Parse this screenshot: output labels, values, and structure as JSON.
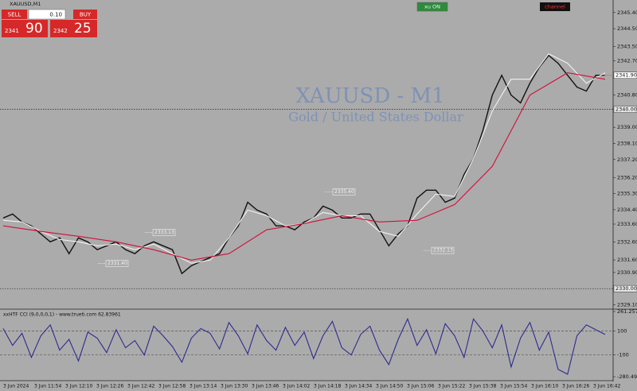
{
  "window": {
    "title": "XAUUSD,M1"
  },
  "trade_panel": {
    "sell": "SELL",
    "buy": "BUY",
    "lot": "0.10",
    "bid": {
      "big": "2341",
      "small": "90"
    },
    "ask": {
      "big": "2342",
      "small": "25"
    }
  },
  "buttons": {
    "xu": "xu ON",
    "channel": "channel"
  },
  "time_labels": [
    "3 Jun 2024",
    "3 Jun 11:54",
    "3 Jun 12:10",
    "3 Jun 12:26",
    "3 Jun 12:42",
    "3 Jun 12:58",
    "3 Jun 13:14",
    "3 Jun 13:30",
    "3 Jun 13:46",
    "3 Jun 14:02",
    "3 Jun 14:18",
    "3 Jun 14:34",
    "3 Jun 14:50",
    "3 Jun 15:06",
    "3 Jun 15:22",
    "3 Jun 15:38",
    "3 Jun 15:54",
    "3 Jun 16:10",
    "3 Jun 16:26",
    "3 Jun 16:42"
  ],
  "chart_data": [
    {
      "type": "line",
      "title": "XAUUSD - M1",
      "subtitle": "Gold / United States Dollar",
      "ylim": [
        2328.9,
        2346.1
      ],
      "yticks": [
        {
          "value": 2345.4,
          "label": "2345.40"
        },
        {
          "value": 2344.5,
          "label": "2344.50"
        },
        {
          "value": 2343.5,
          "label": "2343.50"
        },
        {
          "value": 2342.7,
          "label": "2342.70"
        },
        {
          "value": 2340.8,
          "label": "2340.80"
        },
        {
          "value": 2339.0,
          "label": "2339.00"
        },
        {
          "value": 2338.1,
          "label": "2338.10"
        },
        {
          "value": 2337.2,
          "label": "2337.20"
        },
        {
          "value": 2336.2,
          "label": "2336.20"
        },
        {
          "value": 2335.3,
          "label": "2335.30"
        },
        {
          "value": 2334.4,
          "label": "2334.40"
        },
        {
          "value": 2333.6,
          "label": "2333.60"
        },
        {
          "value": 2332.6,
          "label": "2332.60"
        },
        {
          "value": 2331.6,
          "label": "2331.60"
        },
        {
          "value": 2330.9,
          "label": "2330.90"
        },
        {
          "value": 2329.1,
          "label": "2329.10"
        }
      ],
      "levels": [
        {
          "value": 2340,
          "label": "2340.00"
        },
        {
          "value": 2330,
          "label": "2330.00"
        }
      ],
      "last_price": {
        "value": 2341.9,
        "label": "2341.90"
      },
      "annotations": [
        {
          "value": 2331.4,
          "label": "2331.40"
        },
        {
          "value": 2333.13,
          "label": "2333.13"
        },
        {
          "value": 2335.4,
          "label": "2335.40"
        },
        {
          "value": 2332.13,
          "label": "2332.13"
        }
      ],
      "series": [
        {
          "color": "#111111",
          "values": [
            2333.94,
            2334.16,
            2333.72,
            2333.5,
            2333.05,
            2332.61,
            2332.83,
            2331.95,
            2332.83,
            2332.61,
            2332.17,
            2332.39,
            2332.61,
            2332.17,
            2331.95,
            2332.39,
            2332.61,
            2332.39,
            2332.17,
            2330.84,
            2331.28,
            2331.51,
            2331.73,
            2331.95,
            2332.83,
            2333.5,
            2334.82,
            2334.38,
            2334.16,
            2333.5,
            2333.5,
            2333.28,
            2333.72,
            2333.94,
            2334.6,
            2334.38,
            2333.94,
            2333.94,
            2334.16,
            2334.16,
            2333.28,
            2332.39,
            2333.05,
            2333.5,
            2335.05,
            2335.49,
            2335.49,
            2334.82,
            2335.05,
            2336.37,
            2337.26,
            2338.81,
            2340.8,
            2341.9,
            2340.8,
            2340.36,
            2341.46,
            2342.35,
            2343.01,
            2342.57,
            2341.9,
            2341.24,
            2341.02,
            2341.9,
            2341.9
          ]
        },
        {
          "color": "#f2f2f2",
          "values": [
            2333.81,
            2333.72,
            2333.19,
            2332.74,
            2332.61,
            2332.39,
            2332.48,
            2332.17,
            2332.48,
            2331.95,
            2331.42,
            2331.59,
            2332.83,
            2334.38,
            2334.07,
            2333.5,
            2333.63,
            2334.25,
            2334.07,
            2334.07,
            2333.19,
            2332.92,
            2334.16,
            2335.27,
            2335.14,
            2337.26,
            2339.91,
            2341.68,
            2341.68,
            2343.1,
            2342.57,
            2341.46,
            2342.04
          ]
        },
        {
          "color": "#d0103a",
          "values": [
            2333.5,
            2333.19,
            2332.92,
            2332.61,
            2332.17,
            2331.59,
            2331.95,
            2333.28,
            2333.63,
            2334.07,
            2333.72,
            2333.81,
            2334.69,
            2336.82,
            2340.8,
            2342.04,
            2341.68
          ]
        }
      ]
    },
    {
      "type": "line",
      "title": "xxHTF CCI (9,0,0,0,1) - www.trueti.com 62.83961",
      "ylim": [
        -280.49617,
        261.25712
      ],
      "yticks": [
        261.25712,
        100,
        -100,
        -280.49617
      ],
      "levels": [
        100,
        -100
      ],
      "series": [
        {
          "color": "#2e2a90",
          "values": [
            120,
            -20,
            80,
            -120,
            60,
            150,
            -60,
            30,
            -150,
            90,
            40,
            -80,
            110,
            -40,
            20,
            -100,
            140,
            60,
            -30,
            -160,
            40,
            120,
            80,
            -50,
            170,
            60,
            -90,
            150,
            20,
            -60,
            130,
            -20,
            90,
            -130,
            60,
            180,
            -40,
            -100,
            70,
            140,
            -60,
            -180,
            30,
            200,
            -20,
            110,
            -90,
            160,
            60,
            -120,
            200,
            100,
            -40,
            150,
            -200,
            40,
            170,
            -60,
            90,
            -220,
            -260,
            60,
            150,
            110,
            70
          ]
        }
      ]
    }
  ]
}
